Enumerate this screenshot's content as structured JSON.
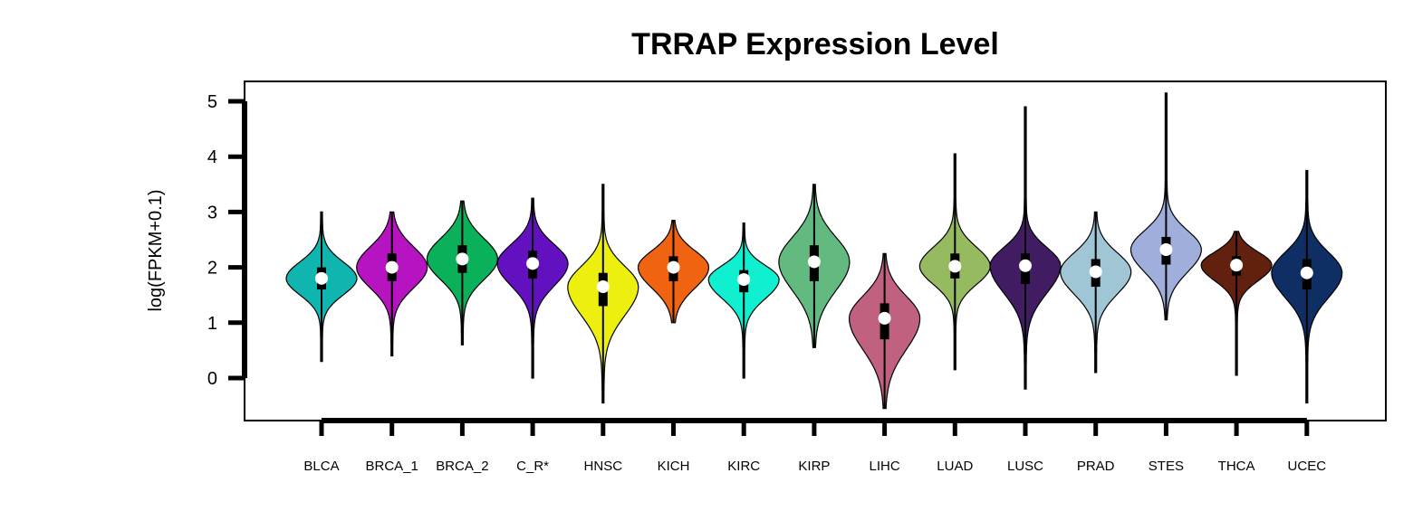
{
  "chart_data": {
    "type": "violin",
    "title": "TRRAP Expression Level",
    "xlabel": "",
    "ylabel": "log(FPKM+0.1)",
    "ylim": [
      -0.75,
      5.4
    ],
    "yticks": [
      0,
      1,
      2,
      3,
      4,
      5
    ],
    "categories": [
      "BLCA",
      "BRCA_1",
      "BRCA_2",
      "C_R*",
      "HNSC",
      "KICH",
      "KIRC",
      "KIRP",
      "LIHC",
      "LUAD",
      "LUSC",
      "PRAD",
      "STES",
      "THCA",
      "UCEC"
    ],
    "colors": [
      "#0FB5AE",
      "#B514C0",
      "#0BB15A",
      "#6311C0",
      "#EDF00F",
      "#F06310",
      "#10EFD0",
      "#62BA80",
      "#C0617F",
      "#95BA5F",
      "#411C62",
      "#A0C6D5",
      "#9FAEDB",
      "#62200F",
      "#0F2F64"
    ],
    "series": [
      {
        "min": 0.3,
        "q1": 1.6,
        "median": 1.8,
        "q3": 2.0,
        "max": 3.0
      },
      {
        "min": 0.4,
        "q1": 1.75,
        "median": 2.0,
        "q3": 2.25,
        "max": 3.0
      },
      {
        "min": 0.6,
        "q1": 1.9,
        "median": 2.15,
        "q3": 2.4,
        "max": 3.2
      },
      {
        "min": 0.0,
        "q1": 1.8,
        "median": 2.07,
        "q3": 2.3,
        "max": 3.25
      },
      {
        "min": -0.45,
        "q1": 1.3,
        "median": 1.65,
        "q3": 1.9,
        "max": 3.5
      },
      {
        "min": 1.0,
        "q1": 1.75,
        "median": 2.0,
        "q3": 2.2,
        "max": 2.85
      },
      {
        "min": 0.0,
        "q1": 1.55,
        "median": 1.78,
        "q3": 1.95,
        "max": 2.8
      },
      {
        "min": 0.55,
        "q1": 1.75,
        "median": 2.1,
        "q3": 2.4,
        "max": 3.5
      },
      {
        "min": -0.55,
        "q1": 0.7,
        "median": 1.08,
        "q3": 1.35,
        "max": 2.25
      },
      {
        "min": 0.15,
        "q1": 1.8,
        "median": 2.02,
        "q3": 2.25,
        "max": 4.05
      },
      {
        "min": -0.2,
        "q1": 1.7,
        "median": 2.03,
        "q3": 2.25,
        "max": 4.9
      },
      {
        "min": 0.1,
        "q1": 1.65,
        "median": 1.92,
        "q3": 2.15,
        "max": 3.0
      },
      {
        "min": 1.05,
        "q1": 2.05,
        "median": 2.32,
        "q3": 2.55,
        "max": 5.15
      },
      {
        "min": 0.05,
        "q1": 1.85,
        "median": 2.04,
        "q3": 2.2,
        "max": 2.65
      },
      {
        "min": -0.45,
        "q1": 1.6,
        "median": 1.9,
        "q3": 2.15,
        "max": 3.75
      }
    ],
    "grid": false,
    "legend": "none"
  }
}
